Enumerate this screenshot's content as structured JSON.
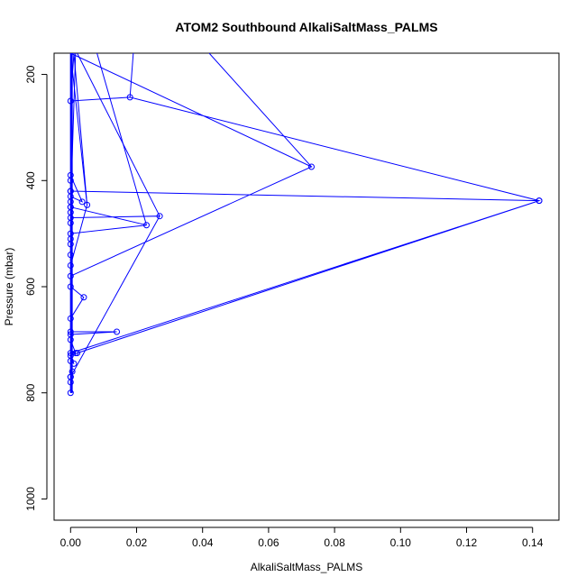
{
  "chart_data": {
    "type": "line",
    "title": "ATOM2 Southbound AlkaliSaltMass_PALMS",
    "xlabel": "AlkaliSaltMass_PALMS",
    "ylabel": "Pressure (mbar)",
    "xlim": [
      -0.005,
      0.148
    ],
    "ylim": [
      1040,
      160
    ],
    "y_inverted": true,
    "x_ticks": [
      0.0,
      0.02,
      0.04,
      0.06,
      0.08,
      0.1,
      0.12,
      0.14
    ],
    "x_tick_labels": [
      "0.00",
      "0.02",
      "0.04",
      "0.06",
      "0.08",
      "0.10",
      "0.12",
      "0.14"
    ],
    "y_ticks": [
      200,
      400,
      600,
      800,
      1000
    ],
    "y_tick_labels": [
      "200",
      "400",
      "600",
      "800",
      "1000"
    ],
    "grid": false,
    "marker": "open-circle",
    "series": [
      {
        "color": "#0000ff",
        "points": [
          [
            0.0,
            800
          ],
          [
            0.0,
            780
          ],
          [
            0.0,
            770
          ],
          [
            0.0005,
            760
          ],
          [
            0.0,
            740
          ],
          [
            0.001,
            745
          ],
          [
            0.0,
            730
          ],
          [
            0.002,
            725
          ],
          [
            0.142,
            438
          ],
          [
            0.0,
            420
          ],
          [
            0.0,
            430
          ],
          [
            0.0035,
            440
          ],
          [
            0.0,
            390
          ],
          [
            0.0,
            160
          ],
          [
            0.001,
            160
          ],
          [
            0.0,
            250
          ],
          [
            0.018,
            243
          ],
          [
            0.142,
            438
          ],
          [
            0.0,
            725
          ],
          [
            0.0015,
            725
          ],
          [
            0.0,
            700
          ],
          [
            0.0,
            690
          ],
          [
            0.014,
            685
          ],
          [
            0.0,
            685
          ],
          [
            0.0,
            660
          ],
          [
            0.004,
            620
          ],
          [
            0.0,
            600
          ],
          [
            0.0,
            580
          ],
          [
            0.073,
            374
          ],
          [
            0.0,
            160
          ],
          [
            0.0,
            500
          ],
          [
            0.023,
            484
          ],
          [
            0.0,
            450
          ],
          [
            0.0,
            470
          ],
          [
            0.027,
            467
          ],
          [
            0.0,
            770
          ],
          [
            0.0,
            160
          ],
          [
            0.005,
            446
          ],
          [
            0.0,
            560
          ],
          [
            0.0,
            540
          ],
          [
            0.0,
            520
          ],
          [
            0.0,
            510
          ],
          [
            0.0,
            480
          ],
          [
            0.0,
            460
          ],
          [
            0.0,
            450
          ],
          [
            0.0,
            440
          ],
          [
            0.0,
            420
          ],
          [
            0.0,
            400
          ]
        ]
      }
    ],
    "top_segments": [
      [
        [
          0.019,
          160
        ],
        [
          0.018,
          243
        ]
      ],
      [
        [
          0.042,
          160
        ],
        [
          0.073,
          374
        ]
      ],
      [
        [
          0.008,
          160
        ],
        [
          0.023,
          484
        ]
      ],
      [
        [
          0.002,
          160
        ],
        [
          0.027,
          467
        ]
      ],
      [
        [
          0.001,
          160
        ],
        [
          0.005,
          446
        ]
      ],
      [
        [
          0.0015,
          160
        ],
        [
          0.0,
          450
        ]
      ]
    ]
  }
}
